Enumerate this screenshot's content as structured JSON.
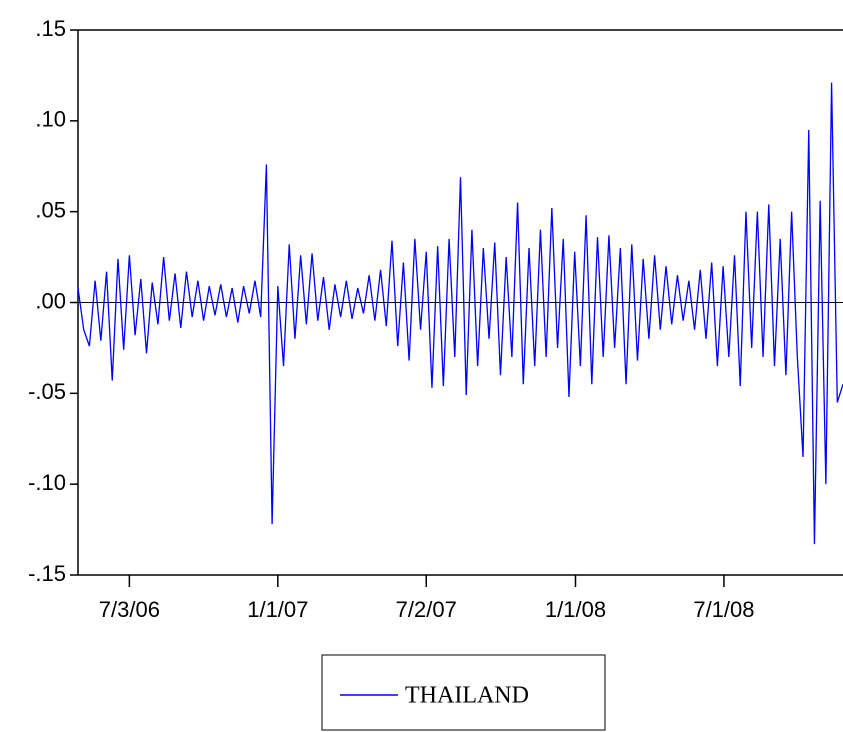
{
  "chart_data": {
    "type": "line",
    "x": [
      "5/1/06",
      "5/8/06",
      "5/15/06",
      "5/22/06",
      "5/29/06",
      "6/5/06",
      "6/12/06",
      "6/19/06",
      "6/26/06",
      "7/3/06",
      "7/10/06",
      "7/17/06",
      "7/24/06",
      "7/31/06",
      "8/7/06",
      "8/14/06",
      "8/21/06",
      "8/28/06",
      "9/4/06",
      "9/11/06",
      "9/18/06",
      "9/25/06",
      "10/2/06",
      "10/9/06",
      "10/16/06",
      "10/23/06",
      "10/30/06",
      "11/6/06",
      "11/13/06",
      "11/20/06",
      "11/27/06",
      "12/4/06",
      "12/11/06",
      "12/18/06",
      "12/25/06",
      "1/1/07",
      "1/8/07",
      "1/15/07",
      "1/22/07",
      "1/29/07",
      "2/5/07",
      "2/12/07",
      "2/19/07",
      "2/26/07",
      "3/5/07",
      "3/12/07",
      "3/19/07",
      "3/26/07",
      "4/2/07",
      "4/9/07",
      "4/16/07",
      "4/23/07",
      "4/30/07",
      "5/7/07",
      "5/14/07",
      "5/21/07",
      "5/28/07",
      "6/4/07",
      "6/11/07",
      "6/18/07",
      "6/25/07",
      "7/2/07",
      "7/9/07",
      "7/16/07",
      "7/23/07",
      "7/30/07",
      "8/6/07",
      "8/13/07",
      "8/20/07",
      "8/27/07",
      "9/3/07",
      "9/10/07",
      "9/17/07",
      "9/24/07",
      "10/1/07",
      "10/8/07",
      "10/15/07",
      "10/22/07",
      "10/29/07",
      "11/5/07",
      "11/12/07",
      "11/19/07",
      "11/26/07",
      "12/3/07",
      "12/10/07",
      "12/17/07",
      "12/24/07",
      "12/31/07",
      "1/7/08",
      "1/14/08",
      "1/21/08",
      "1/28/08",
      "2/4/08",
      "2/11/08",
      "2/18/08",
      "2/25/08",
      "3/3/08",
      "3/10/08",
      "3/17/08",
      "3/24/08",
      "3/31/08",
      "4/7/08",
      "4/14/08",
      "4/21/08",
      "4/28/08",
      "5/5/08",
      "5/12/08",
      "5/19/08",
      "5/26/08",
      "6/2/08",
      "6/9/08",
      "6/16/08",
      "6/23/08",
      "6/30/08",
      "7/7/08",
      "7/14/08",
      "7/21/08",
      "7/28/08",
      "8/4/08",
      "8/11/08",
      "8/18/08",
      "8/25/08",
      "9/1/08",
      "9/8/08",
      "9/15/08",
      "9/22/08",
      "9/29/08",
      "10/6/08",
      "10/13/08",
      "10/20/08",
      "10/27/08",
      "11/3/08",
      "11/10/08",
      "11/17/08",
      "11/24/08"
    ],
    "series": [
      {
        "name": "THAILAND",
        "color": "#0000ff",
        "values": [
          0.008,
          -0.015,
          -0.024,
          0.012,
          -0.021,
          0.017,
          -0.043,
          0.024,
          -0.026,
          0.026,
          -0.018,
          0.013,
          -0.028,
          0.011,
          -0.012,
          0.025,
          -0.01,
          0.016,
          -0.014,
          0.017,
          -0.008,
          0.012,
          -0.01,
          0.009,
          -0.007,
          0.01,
          -0.008,
          0.008,
          -0.011,
          0.009,
          -0.006,
          0.012,
          -0.008,
          0.076,
          -0.122,
          0.009,
          -0.035,
          0.032,
          -0.02,
          0.026,
          -0.012,
          0.027,
          -0.01,
          0.014,
          -0.015,
          0.01,
          -0.008,
          0.012,
          -0.009,
          0.008,
          -0.006,
          0.015,
          -0.01,
          0.018,
          -0.013,
          0.034,
          -0.024,
          0.022,
          -0.032,
          0.035,
          -0.015,
          0.028,
          -0.047,
          0.031,
          -0.046,
          0.035,
          -0.03,
          0.069,
          -0.051,
          0.04,
          -0.035,
          0.03,
          -0.02,
          0.033,
          -0.04,
          0.025,
          -0.03,
          0.055,
          -0.045,
          0.03,
          -0.035,
          0.04,
          -0.03,
          0.052,
          -0.025,
          0.035,
          -0.052,
          0.028,
          -0.035,
          0.048,
          -0.045,
          0.036,
          -0.03,
          0.037,
          -0.025,
          0.03,
          -0.045,
          0.032,
          -0.032,
          0.024,
          -0.02,
          0.026,
          -0.015,
          0.02,
          -0.012,
          0.015,
          -0.01,
          0.012,
          -0.015,
          0.018,
          -0.02,
          0.022,
          -0.035,
          0.02,
          -0.03,
          0.026,
          -0.046,
          0.05,
          -0.025,
          0.05,
          -0.03,
          0.054,
          -0.035,
          0.035,
          -0.04,
          0.05,
          -0.03,
          -0.085,
          0.095,
          -0.133,
          0.056,
          -0.1,
          0.121,
          -0.055,
          -0.045
        ]
      }
    ],
    "xlim": [
      "5/1/06",
      "11/24/08"
    ],
    "xticks": [
      "7/3/06",
      "1/1/07",
      "7/2/07",
      "1/1/08",
      "7/1/08"
    ],
    "ylim": [
      -0.15,
      0.15
    ],
    "yticks": [
      {
        "value": -0.15,
        "label": "-.15"
      },
      {
        "value": -0.1,
        "label": "-.10"
      },
      {
        "value": -0.05,
        "label": "-.05"
      },
      {
        "value": 0,
        "label": ".00"
      },
      {
        "value": 0.05,
        "label": ".05"
      },
      {
        "value": 0.1,
        "label": ".10"
      },
      {
        "value": 0.15,
        "label": ".15"
      }
    ],
    "zero_line": true
  }
}
